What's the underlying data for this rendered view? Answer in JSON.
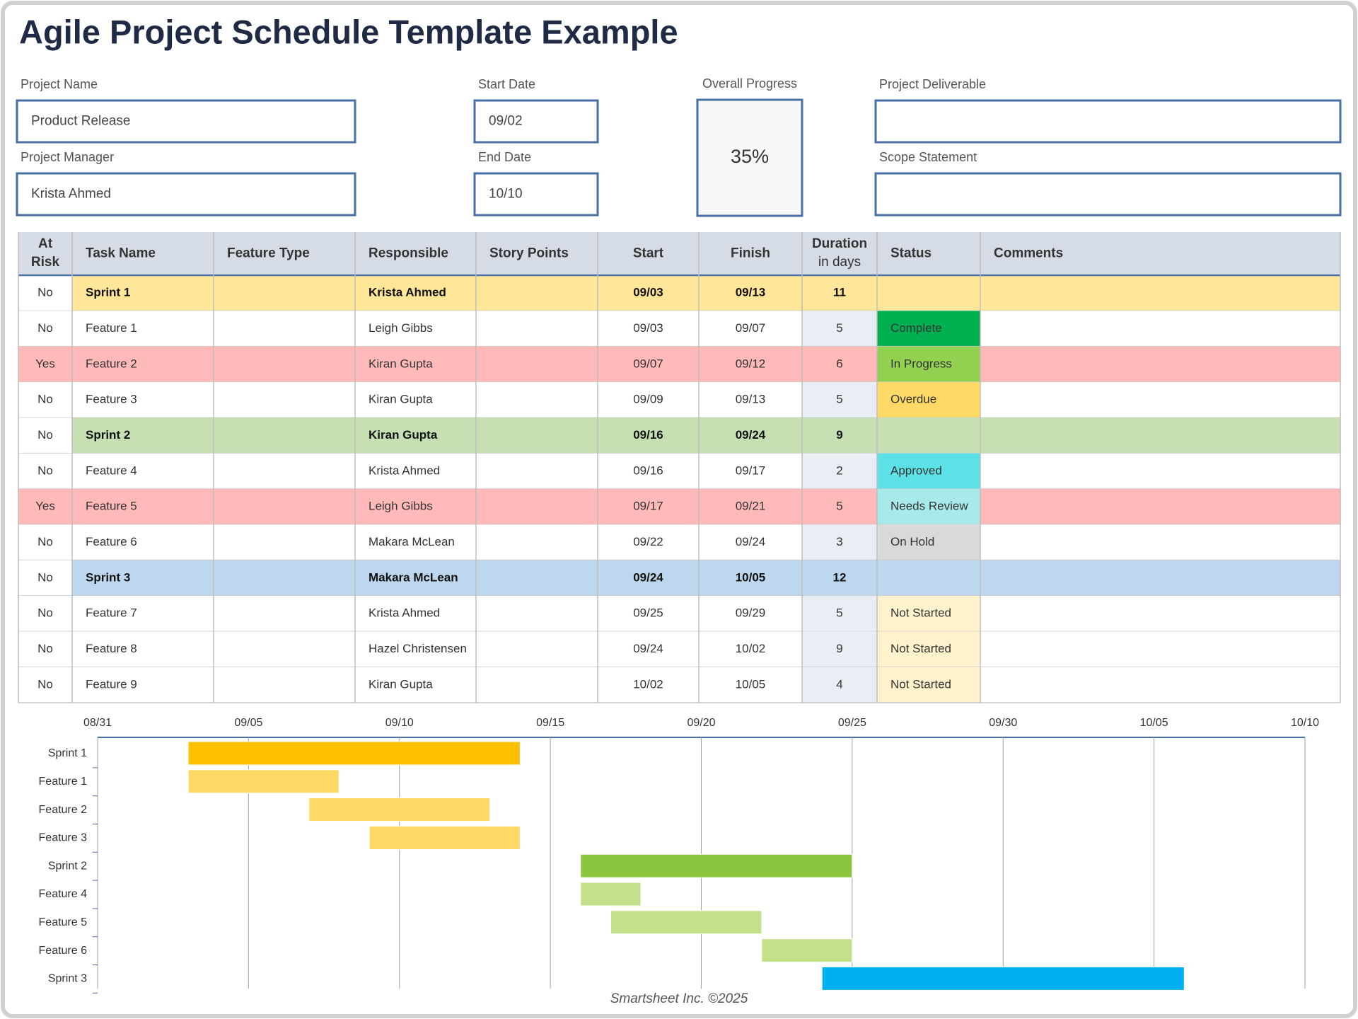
{
  "title": "Agile Project Schedule Template Example",
  "fields": {
    "project_name": {
      "label": "Project Name",
      "value": "Product Release"
    },
    "project_manager": {
      "label": "Project Manager",
      "value": "Krista Ahmed"
    },
    "start_date": {
      "label": "Start Date",
      "value": "09/02"
    },
    "end_date": {
      "label": "End Date",
      "value": "10/10"
    },
    "overall_progress": {
      "label": "Overall Progress",
      "value": "35%"
    },
    "project_deliverable": {
      "label": "Project Deliverable",
      "value": null
    },
    "scope_statement": {
      "label": "Scope Statement",
      "value": null
    }
  },
  "table": {
    "headers": [
      [
        "At",
        "Risk"
      ],
      "Task Name",
      "Feature Type",
      "Responsible",
      "Story Points",
      "Start",
      "Finish",
      [
        "Duration",
        "in days"
      ],
      "Status",
      "Comments"
    ],
    "rows": [
      {
        "at_risk": "No",
        "task": "Sprint 1",
        "responsible": "Krista Ahmed",
        "start": "09/03",
        "finish": "09/13",
        "duration": "11",
        "status": null,
        "bold": true,
        "color": "#FFE699",
        "status_color": null
      },
      {
        "at_risk": "No",
        "task": "Feature 1",
        "responsible": "Leigh Gibbs",
        "start": "09/03",
        "finish": "09/07",
        "duration": "5",
        "status": "Complete",
        "bold": false,
        "color": "#FFFFFF",
        "status_color": "#00B050"
      },
      {
        "at_risk": "Yes",
        "task": "Feature 2",
        "responsible": "Kiran Gupta",
        "start": "09/07",
        "finish": "09/12",
        "duration": "6",
        "status": "In Progress",
        "bold": false,
        "color": "#FFB9B9",
        "status_color": "#92D050"
      },
      {
        "at_risk": "No",
        "task": "Feature 3",
        "responsible": "Kiran Gupta",
        "start": "09/09",
        "finish": "09/13",
        "duration": "5",
        "status": "Overdue",
        "bold": false,
        "color": "#FFFFFF",
        "status_color": "#FFD966"
      },
      {
        "at_risk": "No",
        "task": "Sprint 2",
        "responsible": "Kiran Gupta",
        "start": "09/16",
        "finish": "09/24",
        "duration": "9",
        "status": null,
        "bold": true,
        "color": "#C6E0B4",
        "status_color": null
      },
      {
        "at_risk": "No",
        "task": "Feature 4",
        "responsible": "Krista Ahmed",
        "start": "09/16",
        "finish": "09/17",
        "duration": "2",
        "status": "Approved",
        "bold": false,
        "color": "#FFFFFF",
        "status_color": "#5CE1E6"
      },
      {
        "at_risk": "Yes",
        "task": "Feature 5",
        "responsible": "Leigh Gibbs",
        "start": "09/17",
        "finish": "09/21",
        "duration": "5",
        "status": "Needs Review",
        "bold": false,
        "color": "#FFB9B9",
        "status_color": "#A8E9E9"
      },
      {
        "at_risk": "No",
        "task": "Feature 6",
        "responsible": "Makara McLean",
        "start": "09/22",
        "finish": "09/24",
        "duration": "3",
        "status": "On Hold",
        "bold": false,
        "color": "#FFFFFF",
        "status_color": "#D9D9D9"
      },
      {
        "at_risk": "No",
        "task": "Sprint 3",
        "responsible": "Makara McLean",
        "start": "09/24",
        "finish": "10/05",
        "duration": "12",
        "status": null,
        "bold": true,
        "color": "#BDD7EE",
        "status_color": null
      },
      {
        "at_risk": "No",
        "task": "Feature 7",
        "responsible": "Krista Ahmed",
        "start": "09/25",
        "finish": "09/29",
        "duration": "5",
        "status": "Not Started",
        "bold": false,
        "color": "#FFFFFF",
        "status_color": "#FFF2CC"
      },
      {
        "at_risk": "No",
        "task": "Feature 8",
        "responsible": "Hazel Christensen",
        "start": "09/24",
        "finish": "10/02",
        "duration": "9",
        "status": "Not Started",
        "bold": false,
        "color": "#FFFFFF",
        "status_color": "#FFF2CC"
      },
      {
        "at_risk": "No",
        "task": "Feature 9",
        "responsible": "Kiran Gupta",
        "start": "10/02",
        "finish": "10/05",
        "duration": "4",
        "status": "Not Started",
        "bold": false,
        "color": "#FFFFFF",
        "status_color": "#FFF2CC"
      }
    ]
  },
  "gantt": {
    "categories": [
      "Sprint 1",
      "Feature 1",
      "Feature 2",
      "Feature 3",
      "Sprint 2",
      "Feature 4",
      "Feature 5",
      "Feature 6",
      "Sprint 3"
    ],
    "colors": [
      "#FFC000",
      "#FFD966",
      "#FFD966",
      "#FFD966",
      "#8CC63F",
      "#C5E08A",
      "#C5E08A",
      "#C5E08A",
      "#00B0F0"
    ],
    "xticks": [
      "08/31",
      "09/05",
      "09/10",
      "09/15",
      "09/20",
      "09/25",
      "09/30",
      "10/05",
      "10/10"
    ],
    "grid": true
  },
  "footer": "Smartsheet Inc. ©2025"
}
